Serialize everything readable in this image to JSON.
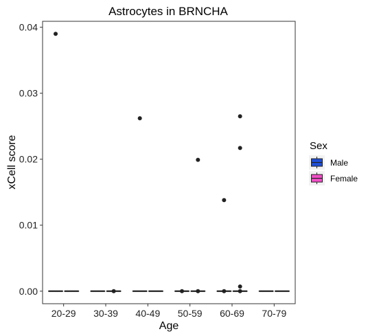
{
  "chart_data": {
    "type": "box",
    "title": "Astrocytes in BRNCHA",
    "xlabel": "Age",
    "ylabel": "xCell score",
    "categories": [
      "20-29",
      "30-39",
      "40-49",
      "50-59",
      "60-69",
      "70-79"
    ],
    "ylim": [
      -0.0019,
      0.0409
    ],
    "yticks": [
      0.0,
      0.01,
      0.02,
      0.03,
      0.04
    ],
    "ytick_labels": [
      "0.00",
      "0.01",
      "0.02",
      "0.03",
      "0.04"
    ],
    "grid": false,
    "legend": {
      "title": "Sex",
      "position": "right",
      "entries": [
        {
          "name": "Male",
          "color": "#1f4fd6"
        },
        {
          "name": "Female",
          "color": "#f04fc6"
        }
      ]
    },
    "series": [
      {
        "name": "Male",
        "color": "#1f4fd6",
        "boxes": [
          {
            "category": "20-29",
            "q1": 0,
            "median": 0,
            "q3": 0,
            "whisker_low": 0,
            "whisker_high": 0,
            "outliers": [
              0.039
            ]
          },
          {
            "category": "30-39",
            "q1": 0,
            "median": 0,
            "q3": 0,
            "whisker_low": 0,
            "whisker_high": 0,
            "outliers": []
          },
          {
            "category": "40-49",
            "q1": 0,
            "median": 0,
            "q3": 0,
            "whisker_low": 0,
            "whisker_high": 0,
            "outliers": [
              0.0262
            ]
          },
          {
            "category": "50-59",
            "q1": 0,
            "median": 0,
            "q3": 0,
            "whisker_low": 0,
            "whisker_high": 0,
            "outliers": [
              0.0
            ]
          },
          {
            "category": "60-69",
            "q1": 0,
            "median": 0,
            "q3": 0,
            "whisker_low": 0,
            "whisker_high": 0,
            "outliers": [
              0.0138,
              0.0
            ]
          },
          {
            "category": "70-79",
            "q1": 0,
            "median": 0,
            "q3": 0,
            "whisker_low": 0,
            "whisker_high": 0,
            "outliers": []
          }
        ]
      },
      {
        "name": "Female",
        "color": "#f04fc6",
        "boxes": [
          {
            "category": "20-29",
            "q1": 0,
            "median": 0,
            "q3": 0,
            "whisker_low": 0,
            "whisker_high": 0,
            "outliers": []
          },
          {
            "category": "30-39",
            "q1": 0,
            "median": 0,
            "q3": 0,
            "whisker_low": 0,
            "whisker_high": 0,
            "outliers": [
              0.0
            ]
          },
          {
            "category": "40-49",
            "q1": 0,
            "median": 0,
            "q3": 0,
            "whisker_low": 0,
            "whisker_high": 0,
            "outliers": []
          },
          {
            "category": "50-59",
            "q1": 0,
            "median": 0,
            "q3": 0,
            "whisker_low": 0,
            "whisker_high": 0,
            "outliers": [
              0.0199,
              0.0
            ]
          },
          {
            "category": "60-69",
            "q1": 0,
            "median": 0,
            "q3": 0,
            "whisker_low": 0,
            "whisker_high": 0,
            "outliers": [
              0.0265,
              0.0217,
              0.0007,
              0.0
            ]
          },
          {
            "category": "70-79",
            "q1": 0,
            "median": 0,
            "q3": 0,
            "whisker_low": 0,
            "whisker_high": 0,
            "outliers": []
          }
        ]
      }
    ]
  }
}
